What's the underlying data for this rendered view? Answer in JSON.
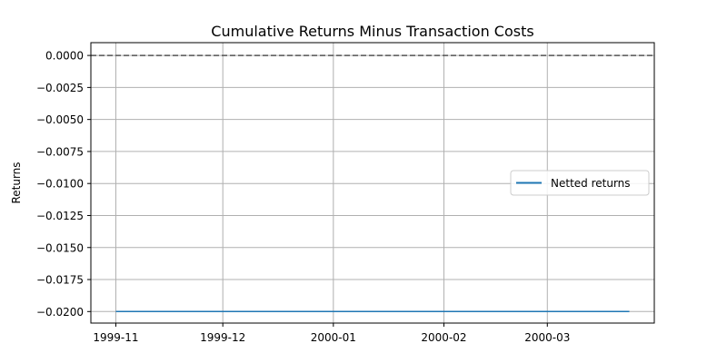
{
  "chart_data": {
    "type": "line",
    "title": "Cumulative Returns Minus Transaction Costs",
    "xlabel": "",
    "ylabel": "Returns",
    "x_tick_labels": [
      "1999-11",
      "1999-12",
      "2000-01",
      "2000-02",
      "2000-03"
    ],
    "x_ticks": [
      "1999-11-01",
      "1999-12-01",
      "2000-01-01",
      "2000-02-01",
      "2000-03-01"
    ],
    "xlim": [
      "1999-10-25",
      "2000-03-31"
    ],
    "y_tick_labels": [
      "0.0000",
      "−0.0025",
      "−0.0050",
      "−0.0075",
      "−0.0100",
      "−0.0125",
      "−0.0150",
      "−0.0175",
      "−0.0200"
    ],
    "y_ticks": [
      0.0,
      -0.0025,
      -0.005,
      -0.0075,
      -0.01,
      -0.0125,
      -0.015,
      -0.0175,
      -0.02
    ],
    "ylim": [
      -0.0209,
      0.001
    ],
    "grid": true,
    "reference_line": {
      "y": 0.0,
      "style": "dashed",
      "color": "#555555"
    },
    "legend": {
      "placement": "center-right"
    },
    "series": [
      {
        "name": "Netted returns",
        "color": "#1f77b4",
        "x": [
          "1999-11-01",
          "2000-03-24"
        ],
        "y": [
          -0.02,
          -0.02
        ]
      }
    ]
  }
}
